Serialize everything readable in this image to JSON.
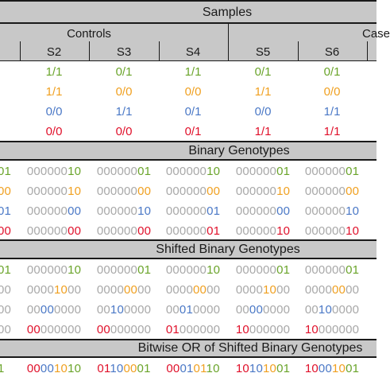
{
  "colors": {
    "green": "#6aa42a",
    "orange": "#f0a020",
    "blue": "#4a78c6",
    "red": "#e0102a",
    "grey": "#a8a8a8",
    "band": "#c8c8c8"
  },
  "headers": {
    "samples": "Samples",
    "controls": "Controls",
    "cases": "Case",
    "binary": "Binary Genotypes",
    "shifted": "Shifted Binary Genotypes",
    "bitwise": "Bitwise OR of Shifted Binary Genotypes"
  },
  "columns": [
    "S2",
    "S3",
    "S4",
    "S5",
    "S6"
  ],
  "row_colors": [
    "green",
    "orange",
    "blue",
    "red"
  ],
  "genotypes": [
    [
      "1/1",
      "0/1",
      "1/1",
      "0/1",
      "0/1"
    ],
    [
      "1/1",
      "0/0",
      "0/0",
      "1/1",
      "0/0"
    ],
    [
      "0/0",
      "1/1",
      "0/1",
      "0/0",
      "1/1"
    ],
    [
      "0/0",
      "0/0",
      "0/1",
      "1/1",
      "1/1"
    ]
  ],
  "binary_left_edge": [
    "01",
    "00",
    "01",
    "00"
  ],
  "binary": [
    [
      [
        "000000",
        "10"
      ],
      [
        "000000",
        "01"
      ],
      [
        "000000",
        "10"
      ],
      [
        "000000",
        "01"
      ],
      [
        "000000",
        "01"
      ]
    ],
    [
      [
        "000000",
        "10"
      ],
      [
        "000000",
        "00"
      ],
      [
        "000000",
        "00"
      ],
      [
        "000000",
        "10"
      ],
      [
        "000000",
        "00"
      ]
    ],
    [
      [
        "000000",
        "00"
      ],
      [
        "000000",
        "10"
      ],
      [
        "000000",
        "01"
      ],
      [
        "000000",
        "00"
      ],
      [
        "000000",
        "10"
      ]
    ],
    [
      [
        "000000",
        "00"
      ],
      [
        "000000",
        "00"
      ],
      [
        "000000",
        "01"
      ],
      [
        "000000",
        "10"
      ],
      [
        "000000",
        "10"
      ]
    ]
  ],
  "shifted_left_edge": [
    "01",
    "00",
    "00",
    "00"
  ],
  "shifted": [
    [
      [
        "000000",
        "10",
        ""
      ],
      [
        "000000",
        "01",
        ""
      ],
      [
        "000000",
        "10",
        ""
      ],
      [
        "000000",
        "01",
        ""
      ],
      [
        "000000",
        "01",
        ""
      ]
    ],
    [
      [
        "0000",
        "10",
        "00"
      ],
      [
        "0000",
        "00",
        "00"
      ],
      [
        "0000",
        "00",
        "00"
      ],
      [
        "0000",
        "10",
        "00"
      ],
      [
        "0000",
        "00",
        "00"
      ]
    ],
    [
      [
        "00",
        "00",
        "0000"
      ],
      [
        "00",
        "10",
        "0000"
      ],
      [
        "00",
        "01",
        "0000"
      ],
      [
        "00",
        "00",
        "0000"
      ],
      [
        "00",
        "10",
        "0000"
      ]
    ],
    [
      [
        "",
        "00",
        "000000"
      ],
      [
        "",
        "00",
        "000000"
      ],
      [
        "",
        "01",
        "000000"
      ],
      [
        "",
        "10",
        "000000"
      ],
      [
        "",
        "10",
        "000000"
      ]
    ]
  ],
  "shifted_red_left": "00",
  "bitwise_left_edge": "1",
  "bitwise": [
    [
      "00",
      "00",
      "10",
      "10"
    ],
    [
      "01",
      "10",
      "00",
      "01"
    ],
    [
      "00",
      "01",
      "01",
      "10"
    ],
    [
      "10",
      "10",
      "10",
      "01"
    ],
    [
      "10",
      "00",
      "10",
      "01"
    ]
  ]
}
